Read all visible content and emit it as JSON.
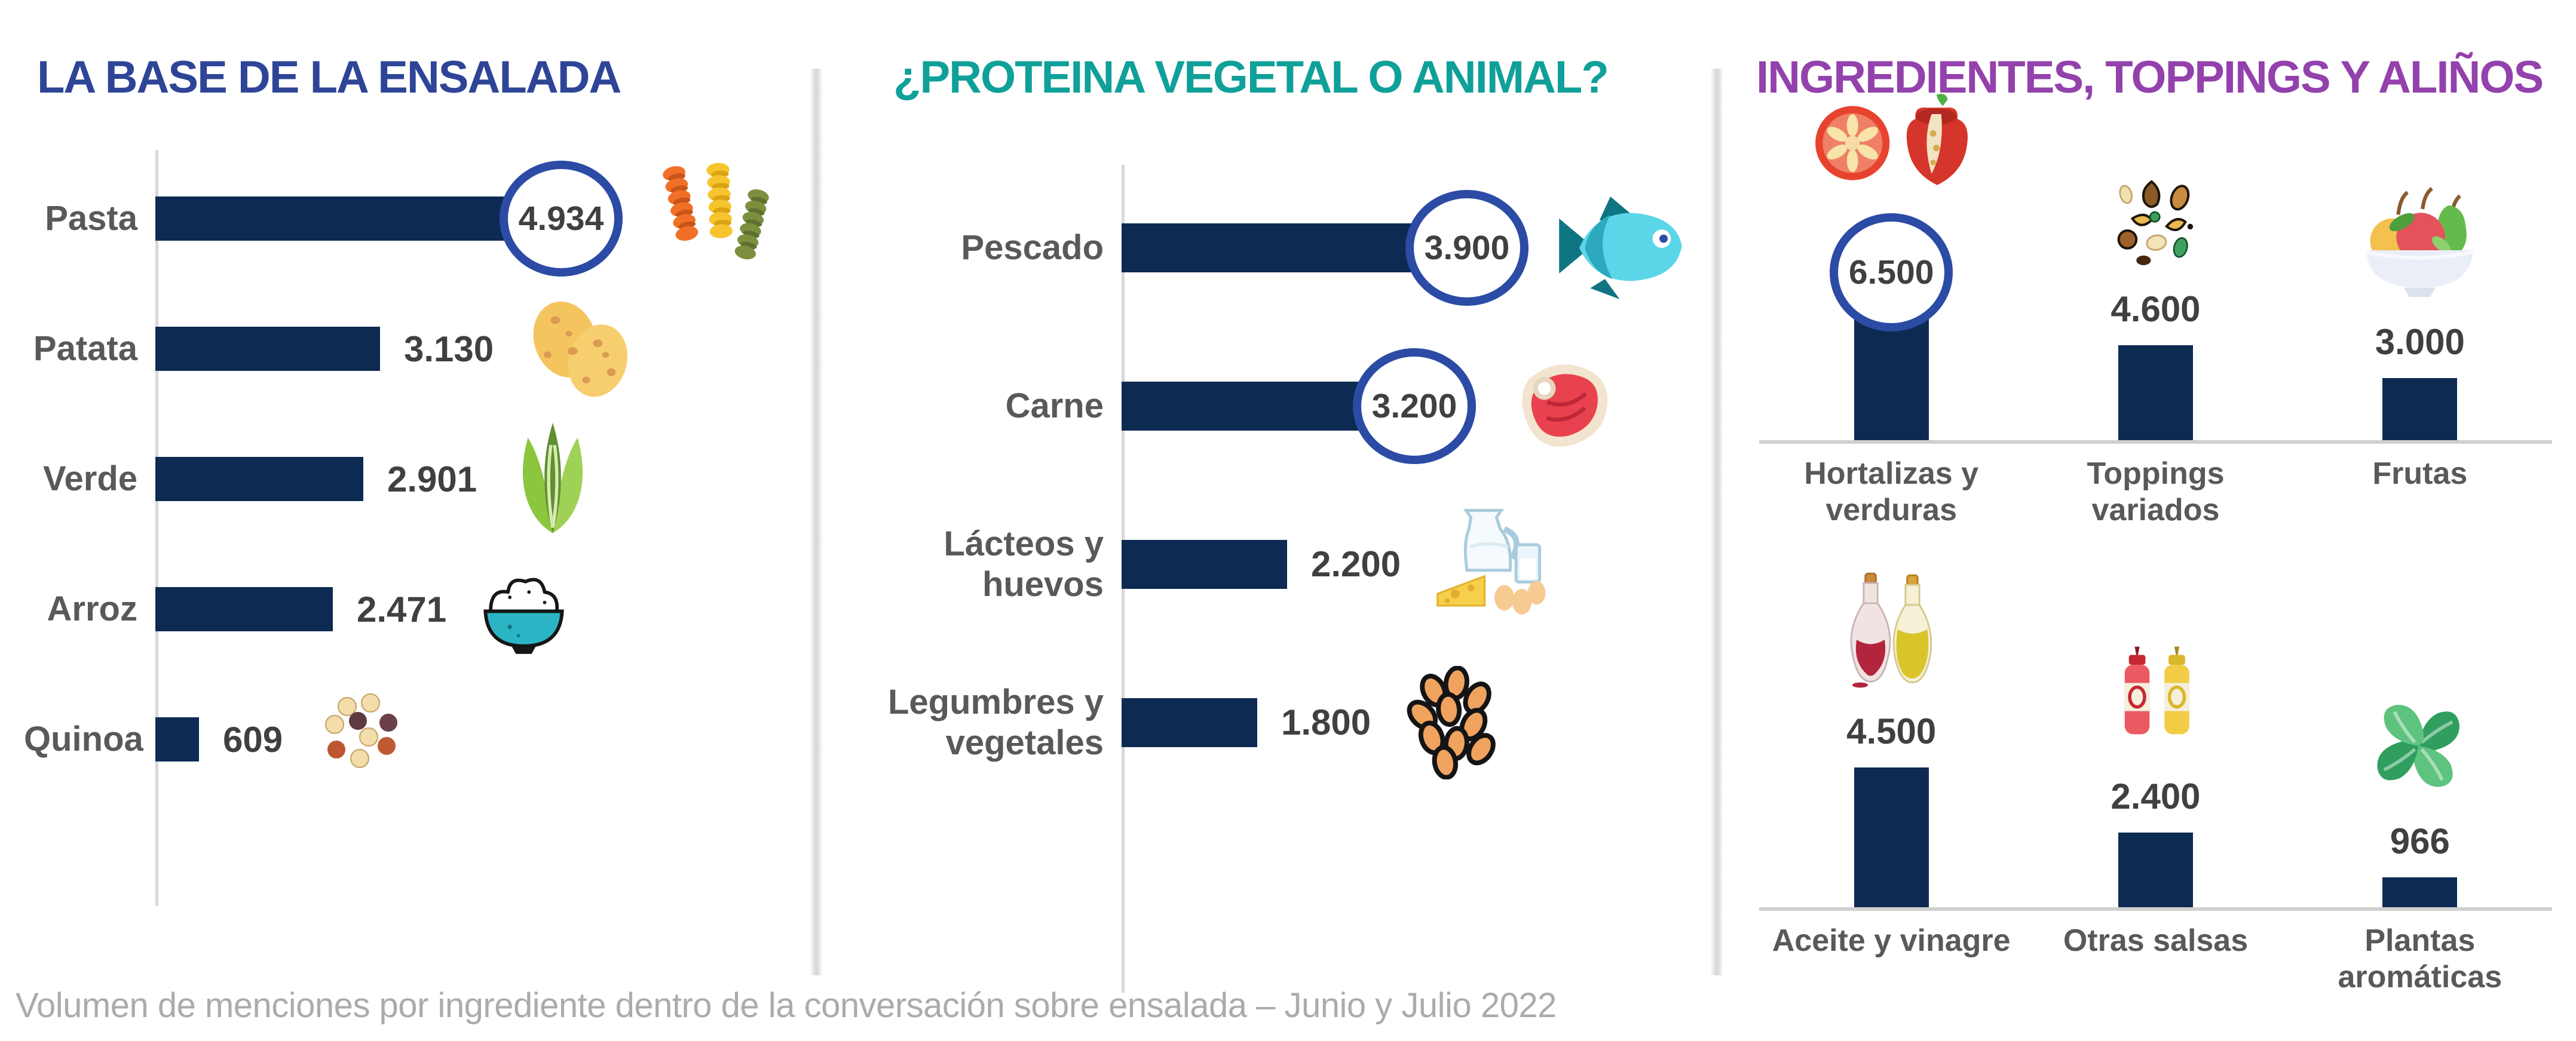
{
  "chart_data": [
    {
      "type": "bar",
      "orientation": "horizontal",
      "title": "LA BASE DE LA ENSALADA",
      "title_color": "#2E4597",
      "xlim": [
        0,
        5500
      ],
      "items": [
        {
          "label": "Pasta",
          "value": 4934,
          "display": "4.934",
          "circled": true,
          "icon": "pasta-icon"
        },
        {
          "label": "Patata",
          "value": 3130,
          "display": "3.130",
          "circled": false,
          "icon": "potatoes-icon"
        },
        {
          "label": "Verde",
          "value": 2901,
          "display": "2.901",
          "circled": false,
          "icon": "lettuce-icon"
        },
        {
          "label": "Arroz",
          "value": 2471,
          "display": "2.471",
          "circled": false,
          "icon": "rice-bowl-icon"
        },
        {
          "label": "Quinoa",
          "value": 609,
          "display": "609",
          "circled": false,
          "icon": "quinoa-seeds-icon"
        }
      ]
    },
    {
      "type": "bar",
      "orientation": "horizontal",
      "title": "¿PROTEINA VEGETAL O ANIMAL?",
      "title_color": "#0FA099",
      "xlim": [
        0,
        4500
      ],
      "items": [
        {
          "label": "Pescado",
          "value": 3900,
          "display": "3.900",
          "circled": true,
          "icon": "fish-icon"
        },
        {
          "label": "Carne",
          "value": 3200,
          "display": "3.200",
          "circled": true,
          "icon": "meat-icon"
        },
        {
          "label": "Lácteos y huevos",
          "value": 2200,
          "display": "2.200",
          "circled": false,
          "icon": "dairy-eggs-icon"
        },
        {
          "label": "Legumbres y vegetales",
          "value": 1800,
          "display": "1.800",
          "circled": false,
          "icon": "legumes-icon"
        }
      ]
    },
    {
      "type": "bar",
      "orientation": "vertical",
      "title": "INGREDIENTES, TOPPINGS Y ALIÑOS",
      "title_color": "#9341AC",
      "rows": [
        {
          "items": [
            {
              "label": "Hortalizas y verduras",
              "value": 6500,
              "display": "6.500",
              "circled": true,
              "icon": "tomato-pepper-icon"
            },
            {
              "label": "Toppings variados",
              "value": 4600,
              "display": "4.600",
              "circled": false,
              "icon": "seeds-icon"
            },
            {
              "label": "Frutas",
              "value": 3000,
              "display": "3.000",
              "circled": false,
              "icon": "fruit-bowl-icon"
            }
          ]
        },
        {
          "items": [
            {
              "label": "Aceite y vinagre",
              "value": 4500,
              "display": "4.500",
              "circled": false,
              "icon": "oil-vinegar-icon"
            },
            {
              "label": "Otras salsas",
              "value": 2400,
              "display": "2.400",
              "circled": false,
              "icon": "sauce-bottles-icon"
            },
            {
              "label": "Plantas aromáticas",
              "value": 966,
              "display": "966",
              "circled": false,
              "icon": "basil-icon"
            }
          ]
        }
      ]
    }
  ],
  "footer": {
    "caption": "Volumen de menciones por ingrediente dentro de la conversación sobre ensalada  – Junio y Julio 2022"
  },
  "colors": {
    "bar": "#0D2B52",
    "circle_stroke": "#2B4BA5",
    "axis": "#D8D8D8",
    "label": "#58595B",
    "value": "#404040",
    "caption": "#ABABAB"
  }
}
